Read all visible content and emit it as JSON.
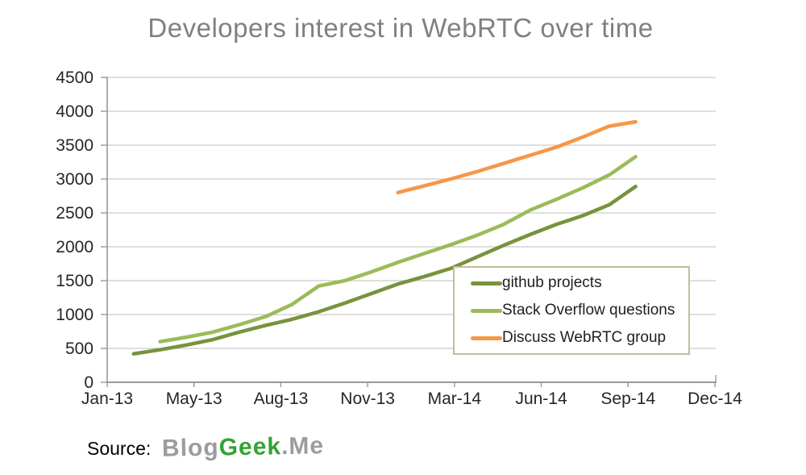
{
  "title": "Developers interest in WebRTC over time",
  "source": {
    "label": "Source:",
    "logo": {
      "part1": "Blog",
      "part2": "Geek",
      "part3": ".Me"
    }
  },
  "colors": {
    "grid": "#C9C9C9",
    "axis": "#999999",
    "title_text": "#808080",
    "tick_text": "#262626",
    "legend_border": "#C4BD97",
    "logo_gray": "#9C9C9C",
    "logo_green": "#33A333"
  },
  "chart_data": {
    "type": "line",
    "title": "Developers interest in WebRTC over time",
    "xlabel": "",
    "ylabel": "",
    "ylim": [
      0,
      4500
    ],
    "y_tick_step": 500,
    "y_tick_labels": [
      "0",
      "500",
      "1000",
      "1500",
      "2000",
      "2500",
      "3000",
      "3500",
      "4000",
      "4500"
    ],
    "x_tick_labels": [
      "Jan-13",
      "May-13",
      "Aug-13",
      "Nov-13",
      "Mar-14",
      "Jun-14",
      "Sep-14",
      "Dec-14"
    ],
    "x_axis_note": "monthly time axis from Jan-13 to Dec-14; month offsets below are counted from Jan-13 = 0",
    "grid": "horizontal",
    "legend_position": "middle-right",
    "series": [
      {
        "name": "github projects",
        "color": "#77933C",
        "start": "Feb-13",
        "end": "Sep-14",
        "start_month_offset": 1,
        "values": [
          420,
          480,
          550,
          630,
          740,
          840,
          930,
          1040,
          1170,
          1310,
          1450,
          1560,
          1680,
          1850,
          2020,
          2180,
          2330,
          2460,
          2620,
          2890
        ]
      },
      {
        "name": "Stack Overflow questions",
        "color": "#9BBB59",
        "start": "Mar-13",
        "end": "Sep-14",
        "start_month_offset": 2,
        "values": [
          600,
          665,
          740,
          850,
          970,
          1150,
          1420,
          1500,
          1630,
          1770,
          1900,
          2030,
          2170,
          2330,
          2540,
          2700,
          2870,
          3060,
          3330
        ]
      },
      {
        "name": "Discuss WebRTC group",
        "color": "#F79646",
        "start": "Dec-13",
        "end": "Sep-14",
        "start_month_offset": 11,
        "values": [
          2800,
          2900,
          3000,
          3110,
          3230,
          3350,
          3470,
          3620,
          3780,
          3845
        ]
      }
    ]
  }
}
